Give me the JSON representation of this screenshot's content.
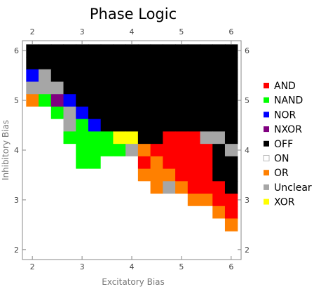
{
  "chart_data": {
    "type": "heatmap",
    "title": "Phase Logic",
    "xlabel": "Excitatory Bias",
    "ylabel": "Inhibitory Bias",
    "xlim": [
      1.8,
      6.2
    ],
    "ylim": [
      1.8,
      6.2
    ],
    "x_ticks": [
      2,
      3,
      4,
      5,
      6
    ],
    "y_ticks": [
      2,
      3,
      4,
      5,
      6
    ],
    "cell_size": 0.25,
    "legend_position": "right",
    "legend": [
      {
        "key": "AND",
        "label": "AND",
        "color": "#ff0000"
      },
      {
        "key": "NAND",
        "label": "NAND",
        "color": "#00ff00"
      },
      {
        "key": "NOR",
        "label": "NOR",
        "color": "#0000ff"
      },
      {
        "key": "NXOR",
        "label": "NXOR",
        "color": "#800080"
      },
      {
        "key": "OFF",
        "label": "OFF",
        "color": "#000000"
      },
      {
        "key": "ON",
        "label": "ON",
        "color": "#ffffff"
      },
      {
        "key": "OR",
        "label": "OR",
        "color": "#ff8000"
      },
      {
        "key": "Unclear",
        "label": "Unclear",
        "color": "#a6a6a6"
      },
      {
        "key": "XOR",
        "label": "XOR",
        "color": "#ffff00"
      }
    ],
    "x_centers": [
      2.0,
      2.25,
      2.5,
      2.75,
      3.0,
      3.25,
      3.5,
      3.75,
      4.0,
      4.25,
      4.5,
      4.75,
      5.0,
      5.25,
      5.5,
      5.75,
      6.0
    ],
    "grid_rows": [
      {
        "y": 6.0,
        "cells": [
          "OFF",
          "OFF",
          "OFF",
          "OFF",
          "OFF",
          "OFF",
          "OFF",
          "OFF",
          "OFF",
          "OFF",
          "OFF",
          "OFF",
          "OFF",
          "OFF",
          "OFF",
          "OFF",
          "OFF"
        ]
      },
      {
        "y": 5.75,
        "cells": [
          "OFF",
          "OFF",
          "OFF",
          "OFF",
          "OFF",
          "OFF",
          "OFF",
          "OFF",
          "OFF",
          "OFF",
          "OFF",
          "OFF",
          "OFF",
          "OFF",
          "OFF",
          "OFF",
          "OFF"
        ]
      },
      {
        "y": 5.5,
        "cells": [
          "NOR",
          "Unclear",
          "OFF",
          "OFF",
          "OFF",
          "OFF",
          "OFF",
          "OFF",
          "OFF",
          "OFF",
          "OFF",
          "OFF",
          "OFF",
          "OFF",
          "OFF",
          "OFF",
          "OFF"
        ]
      },
      {
        "y": 5.25,
        "cells": [
          "Unclear",
          "Unclear",
          "Unclear",
          "OFF",
          "OFF",
          "OFF",
          "OFF",
          "OFF",
          "OFF",
          "OFF",
          "OFF",
          "OFF",
          "OFF",
          "OFF",
          "OFF",
          "OFF",
          "OFF"
        ]
      },
      {
        "y": 5.0,
        "cells": [
          "OR",
          "NAND",
          "NXOR",
          "NOR",
          "OFF",
          "OFF",
          "OFF",
          "OFF",
          "OFF",
          "OFF",
          "OFF",
          "OFF",
          "OFF",
          "OFF",
          "OFF",
          "OFF",
          "OFF"
        ]
      },
      {
        "y": 4.75,
        "cells": [
          "ON",
          "ON",
          "NAND",
          "Unclear",
          "NOR",
          "OFF",
          "OFF",
          "OFF",
          "OFF",
          "OFF",
          "OFF",
          "OFF",
          "OFF",
          "OFF",
          "OFF",
          "OFF",
          "OFF"
        ]
      },
      {
        "y": 4.5,
        "cells": [
          "ON",
          "ON",
          "ON",
          "Unclear",
          "NAND",
          "NOR",
          "OFF",
          "OFF",
          "OFF",
          "OFF",
          "OFF",
          "OFF",
          "OFF",
          "OFF",
          "OFF",
          "OFF",
          "OFF"
        ]
      },
      {
        "y": 4.25,
        "cells": [
          "ON",
          "ON",
          "ON",
          "NAND",
          "NAND",
          "NAND",
          "NAND",
          "XOR",
          "XOR",
          "OFF",
          "OFF",
          "AND",
          "AND",
          "AND",
          "Unclear",
          "Unclear",
          "OFF"
        ]
      },
      {
        "y": 4.0,
        "cells": [
          "ON",
          "ON",
          "ON",
          "ON",
          "NAND",
          "NAND",
          "NAND",
          "NAND",
          "Unclear",
          "OR",
          "AND",
          "AND",
          "AND",
          "AND",
          "AND",
          "OFF",
          "Unclear"
        ]
      },
      {
        "y": 3.75,
        "cells": [
          "ON",
          "ON",
          "ON",
          "ON",
          "NAND",
          "NAND",
          "ON",
          "ON",
          "ON",
          "AND",
          "OR",
          "AND",
          "AND",
          "AND",
          "AND",
          "OFF",
          "OFF"
        ]
      },
      {
        "y": 3.5,
        "cells": [
          "ON",
          "ON",
          "ON",
          "ON",
          "ON",
          "ON",
          "ON",
          "ON",
          "ON",
          "OR",
          "OR",
          "OR",
          "AND",
          "AND",
          "AND",
          "OFF",
          "OFF"
        ]
      },
      {
        "y": 3.25,
        "cells": [
          "ON",
          "ON",
          "ON",
          "ON",
          "ON",
          "ON",
          "ON",
          "ON",
          "ON",
          "ON",
          "OR",
          "Unclear",
          "OR",
          "AND",
          "AND",
          "AND",
          "OFF"
        ]
      },
      {
        "y": 3.0,
        "cells": [
          "ON",
          "ON",
          "ON",
          "ON",
          "ON",
          "ON",
          "ON",
          "ON",
          "ON",
          "ON",
          "ON",
          "ON",
          "ON",
          "OR",
          "OR",
          "AND",
          "AND"
        ]
      },
      {
        "y": 2.75,
        "cells": [
          "ON",
          "ON",
          "ON",
          "ON",
          "ON",
          "ON",
          "ON",
          "ON",
          "ON",
          "ON",
          "ON",
          "ON",
          "ON",
          "ON",
          "ON",
          "OR",
          "AND"
        ]
      },
      {
        "y": 2.5,
        "cells": [
          "ON",
          "ON",
          "ON",
          "ON",
          "ON",
          "ON",
          "ON",
          "ON",
          "ON",
          "ON",
          "ON",
          "ON",
          "ON",
          "ON",
          "ON",
          "ON",
          "OR"
        ]
      }
    ]
  }
}
